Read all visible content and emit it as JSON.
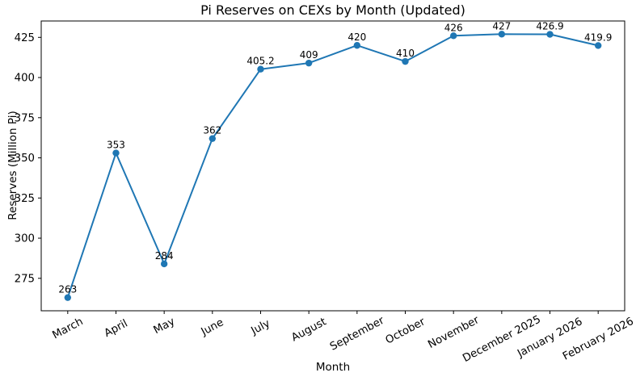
{
  "chart_data": {
    "type": "line",
    "title": "Pi Reserves on CEXs by Month (Updated)",
    "xlabel": "Month",
    "ylabel": "Reserves (Million Pi)",
    "categories": [
      "March",
      "April",
      "May",
      "June",
      "July",
      "August",
      "September",
      "October",
      "November",
      "December 2025",
      "January 2026",
      "February 2026"
    ],
    "values": [
      263,
      353,
      284,
      362,
      405.2,
      409,
      420,
      410,
      426,
      427,
      426.9,
      419.9
    ],
    "point_labels": [
      "263",
      "353",
      "284",
      "362",
      "405.2",
      "409",
      "420",
      "410",
      "426",
      "427",
      "426.9",
      "419.9"
    ],
    "yticks": [
      275,
      300,
      325,
      350,
      375,
      400,
      425
    ],
    "ylim": [
      254.8,
      435.2
    ],
    "line_color": "#1f77b4",
    "marker_color": "#1f77b4",
    "axis_color": "#000000",
    "background_color": "#ffffff",
    "grid": false,
    "legend": "none",
    "x_tick_rotation_deg": 28
  }
}
